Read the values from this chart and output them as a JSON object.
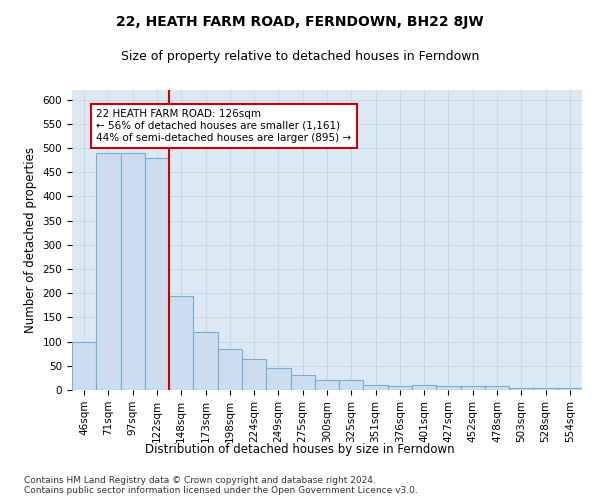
{
  "title": "22, HEATH FARM ROAD, FERNDOWN, BH22 8JW",
  "subtitle": "Size of property relative to detached houses in Ferndown",
  "xlabel": "Distribution of detached houses by size in Ferndown",
  "ylabel": "Number of detached properties",
  "categories": [
    "46sqm",
    "71sqm",
    "97sqm",
    "122sqm",
    "148sqm",
    "173sqm",
    "198sqm",
    "224sqm",
    "249sqm",
    "275sqm",
    "300sqm",
    "325sqm",
    "351sqm",
    "376sqm",
    "401sqm",
    "427sqm",
    "452sqm",
    "478sqm",
    "503sqm",
    "528sqm",
    "554sqm"
  ],
  "values": [
    100,
    490,
    490,
    480,
    195,
    120,
    85,
    65,
    45,
    30,
    20,
    20,
    10,
    8,
    10,
    8,
    8,
    8,
    5,
    5,
    5
  ],
  "bar_color": "#ccddf0",
  "bar_edge_color": "#7aadd4",
  "bar_edge_width": 0.8,
  "red_line_x": 3.5,
  "annotation_line1": "22 HEATH FARM ROAD: 126sqm",
  "annotation_line2": "← 56% of detached houses are smaller (1,161)",
  "annotation_line3": "44% of semi-detached houses are larger (895) →",
  "annotation_box_color": "#ffffff",
  "annotation_box_edge_color": "#cc0000",
  "vline_color": "#cc0000",
  "grid_color": "#c8d8ea",
  "background_color": "#dce9f5",
  "ylim": [
    0,
    620
  ],
  "yticks": [
    0,
    50,
    100,
    150,
    200,
    250,
    300,
    350,
    400,
    450,
    500,
    550,
    600
  ],
  "footer_line1": "Contains HM Land Registry data © Crown copyright and database right 2024.",
  "footer_line2": "Contains public sector information licensed under the Open Government Licence v3.0.",
  "title_fontsize": 10,
  "subtitle_fontsize": 9,
  "axis_label_fontsize": 8.5,
  "tick_fontsize": 7.5,
  "annotation_fontsize": 7.5,
  "footer_fontsize": 6.5
}
